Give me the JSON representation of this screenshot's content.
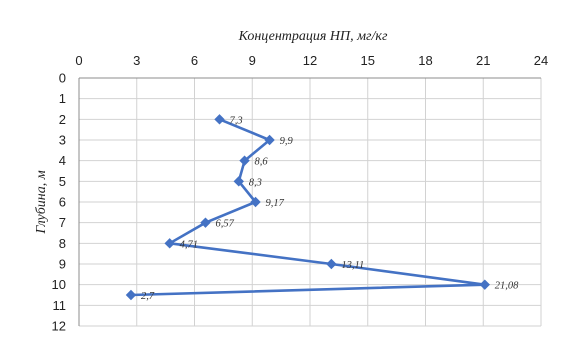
{
  "chart_data": {
    "type": "line",
    "title": "Концентрация НП, мг/кг",
    "xlabel": "Концентрация НП, мг/кг",
    "ylabel": "Глубина, м",
    "xlim": [
      0,
      24
    ],
    "ylim": [
      0,
      12
    ],
    "x_ticks": [
      "0",
      "3",
      "6",
      "9",
      "12",
      "15",
      "18",
      "21",
      "24"
    ],
    "y_ticks": [
      "0",
      "1",
      "2",
      "3",
      "4",
      "5",
      "6",
      "7",
      "8",
      "9",
      "10",
      "11",
      "12"
    ],
    "y_inverted": true,
    "x_axis_position": "top",
    "grid": true,
    "series": [
      {
        "color": "#4472c4",
        "marker": "diamond",
        "points": [
          {
            "x": 7.3,
            "y": 2,
            "label": "7,3"
          },
          {
            "x": 9.9,
            "y": 3,
            "label": "9,9"
          },
          {
            "x": 8.6,
            "y": 4,
            "label": "8,6"
          },
          {
            "x": 8.3,
            "y": 5,
            "label": "8,3"
          },
          {
            "x": 9.17,
            "y": 6,
            "label": "9,17"
          },
          {
            "x": 6.57,
            "y": 7,
            "label": "6,57"
          },
          {
            "x": 4.71,
            "y": 8,
            "label": "4,71"
          },
          {
            "x": 13.11,
            "y": 9,
            "label": "13,11"
          },
          {
            "x": 21.08,
            "y": 10,
            "label": "21,08"
          },
          {
            "x": 2.7,
            "y": 10.5,
            "label": "2,7"
          }
        ]
      }
    ]
  }
}
